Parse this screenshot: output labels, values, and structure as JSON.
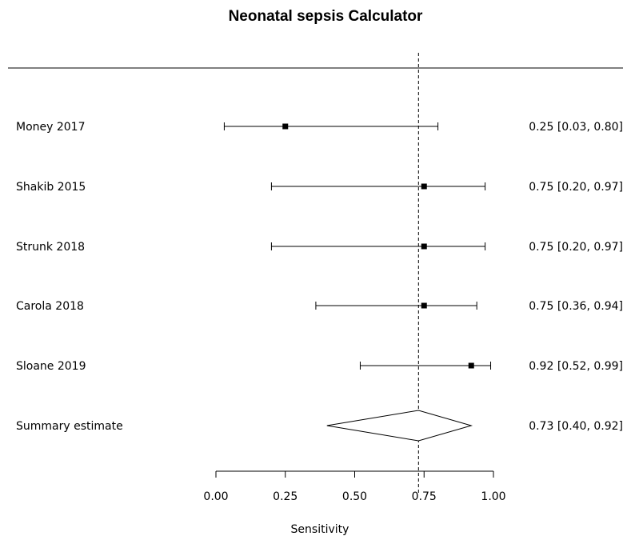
{
  "chart_data": {
    "type": "forest",
    "title": "Neonatal sepsis Calculator",
    "xlabel": "Sensitivity",
    "xlim": [
      0,
      1
    ],
    "xticks": [
      "0.00",
      "0.25",
      "0.50",
      "0.75",
      "1.00"
    ],
    "xtick_values": [
      0,
      0.25,
      0.5,
      0.75,
      1.0
    ],
    "reference_line": 0.73,
    "studies": [
      {
        "label": "Money 2017",
        "estimate": 0.25,
        "lower": 0.03,
        "upper": 0.8,
        "text": "0.25 [0.03, 0.80]"
      },
      {
        "label": "Shakib 2015",
        "estimate": 0.75,
        "lower": 0.2,
        "upper": 0.97,
        "text": "0.75 [0.20, 0.97]"
      },
      {
        "label": "Strunk 2018",
        "estimate": 0.75,
        "lower": 0.2,
        "upper": 0.97,
        "text": "0.75 [0.20, 0.97]"
      },
      {
        "label": "Carola 2018",
        "estimate": 0.75,
        "lower": 0.36,
        "upper": 0.94,
        "text": "0.75 [0.36, 0.94]"
      },
      {
        "label": "Sloane 2019",
        "estimate": 0.92,
        "lower": 0.52,
        "upper": 0.99,
        "text": "0.92 [0.52, 0.99]"
      }
    ],
    "summary": {
      "label": "Summary estimate",
      "estimate": 0.73,
      "lower": 0.4,
      "upper": 0.92,
      "text": "0.73 [0.40, 0.92]"
    }
  }
}
